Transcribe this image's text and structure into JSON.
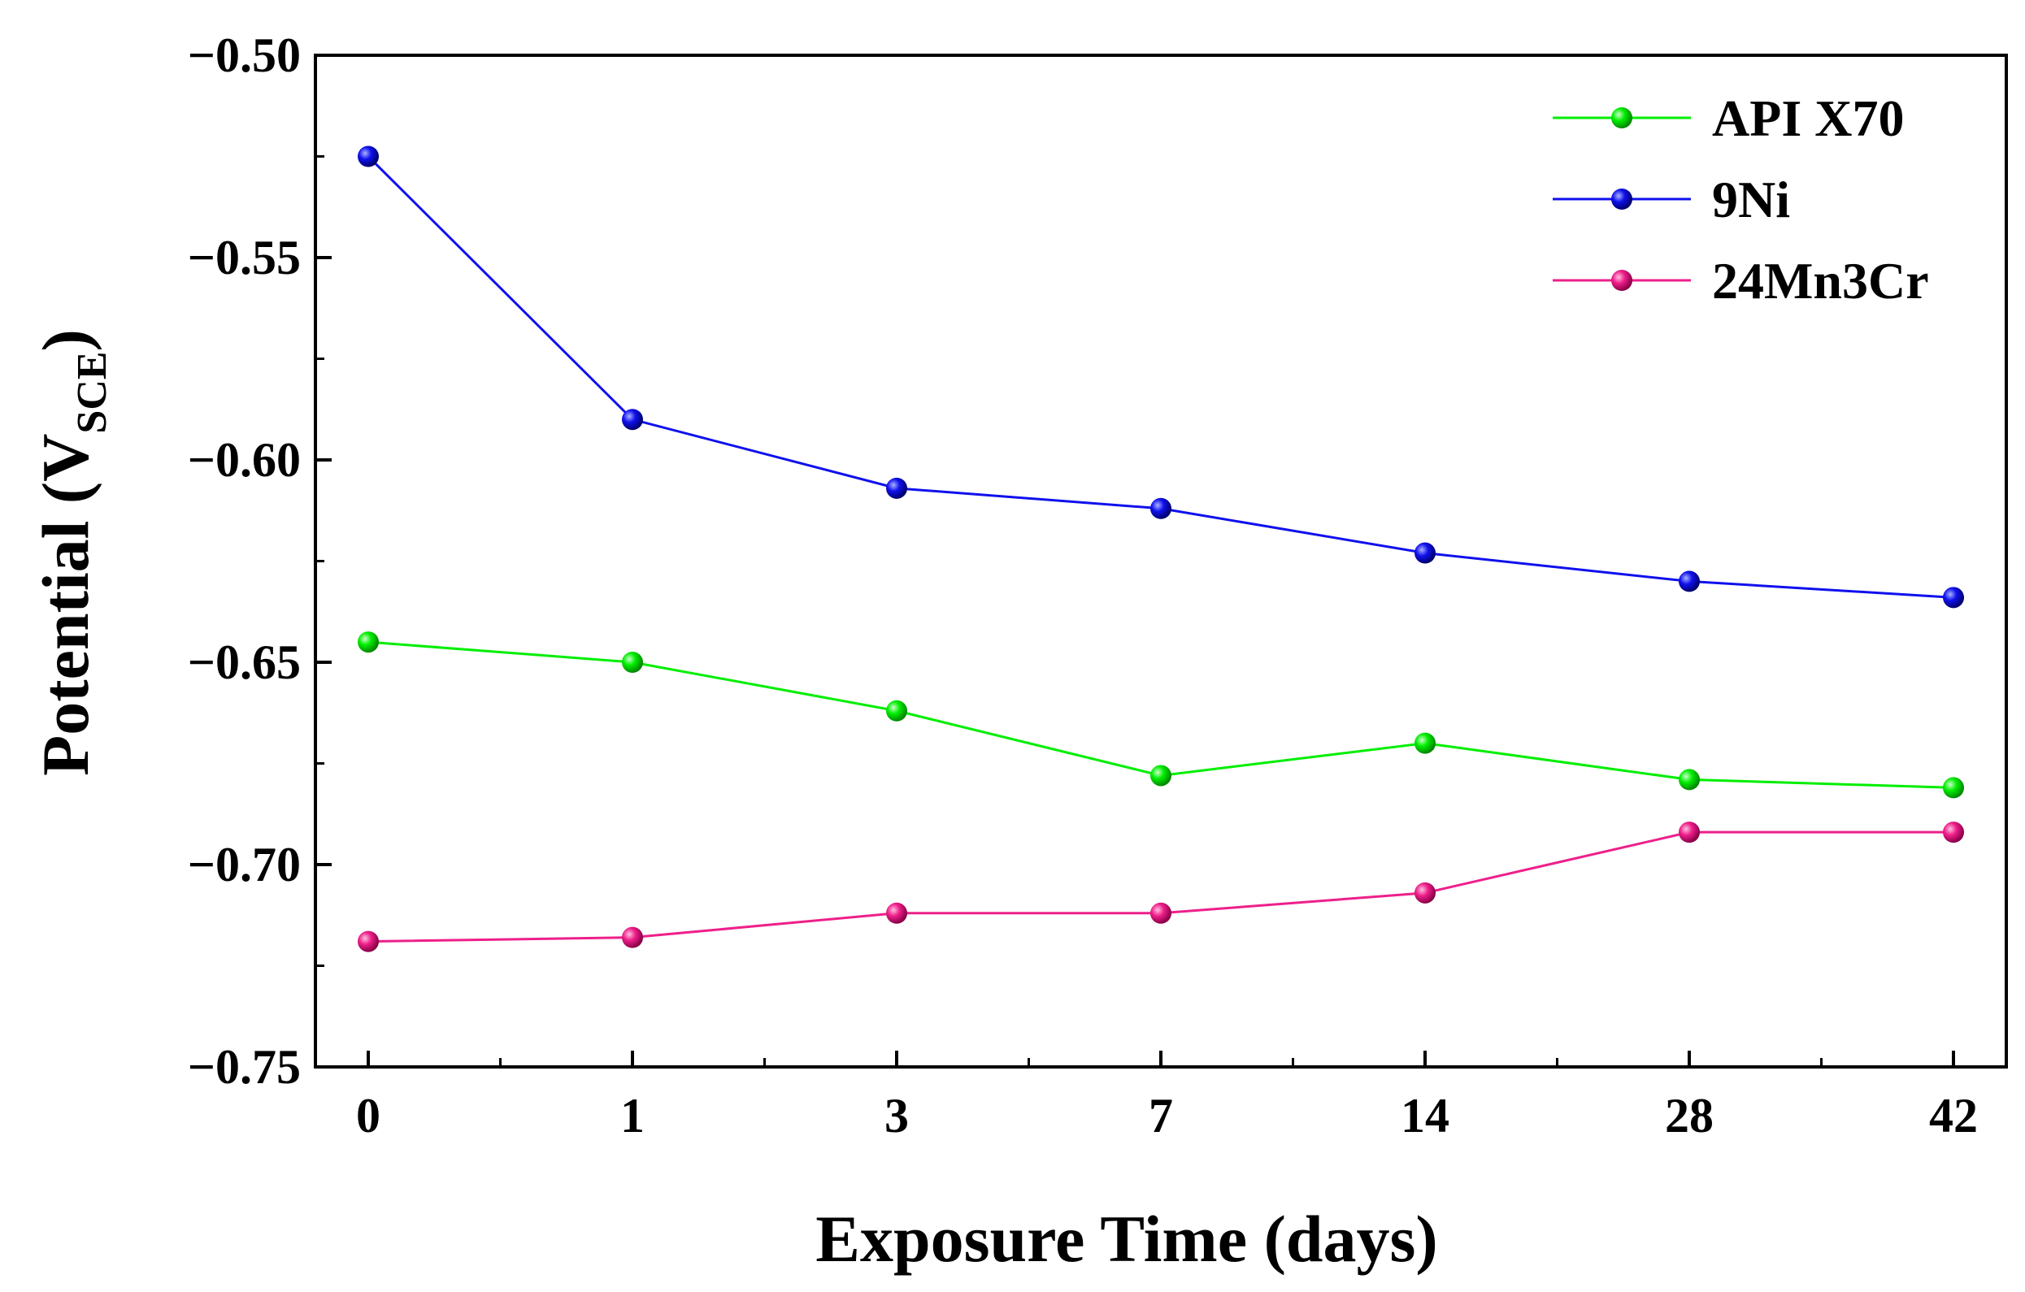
{
  "chart_data": {
    "type": "line",
    "title": "",
    "xlabel": "Exposure Time (days)",
    "ylabel": {
      "prefix": "Potential (V",
      "subscript": "SCE",
      "suffix": ")"
    },
    "categories": [
      "0",
      "1",
      "3",
      "7",
      "14",
      "28",
      "42"
    ],
    "ylim": [
      -0.75,
      -0.5
    ],
    "yticks": [
      -0.5,
      -0.55,
      -0.6,
      -0.65,
      -0.7,
      -0.75
    ],
    "ytick_labels": [
      "−0.50",
      "−0.55",
      "−0.60",
      "−0.65",
      "−0.70",
      "−0.75"
    ],
    "grid": false,
    "legend_position": "top-right",
    "series": [
      {
        "name": "API X70",
        "color": "#00ee00",
        "values": [
          -0.645,
          -0.65,
          -0.662,
          -0.678,
          -0.67,
          -0.679,
          -0.681
        ]
      },
      {
        "name": "9Ni",
        "color": "#1010ee",
        "values": [
          -0.525,
          -0.59,
          -0.607,
          -0.612,
          -0.623,
          -0.63,
          -0.634
        ]
      },
      {
        "name": "24Mn3Cr",
        "color": "#ee1f8a",
        "values": [
          -0.719,
          -0.718,
          -0.712,
          -0.712,
          -0.707,
          -0.692,
          -0.692
        ]
      }
    ]
  }
}
